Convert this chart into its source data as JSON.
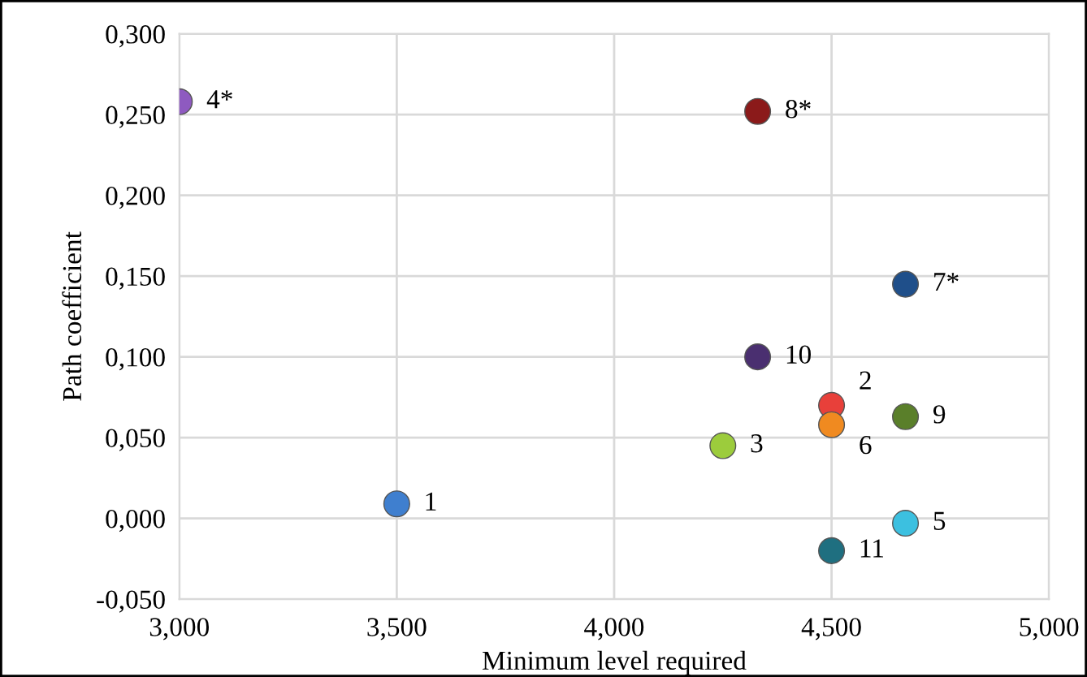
{
  "chart_data": {
    "type": "scatter",
    "xlabel": "Minimum level required",
    "ylabel": "Path coefficient",
    "xlim": [
      3.0,
      5.0
    ],
    "ylim": [
      -0.05,
      0.3
    ],
    "xticks": [
      {
        "value": 3.0,
        "label": "3,000"
      },
      {
        "value": 3.5,
        "label": "3,500"
      },
      {
        "value": 4.0,
        "label": "4,000"
      },
      {
        "value": 4.5,
        "label": "4,500"
      },
      {
        "value": 5.0,
        "label": "5,000"
      }
    ],
    "yticks": [
      {
        "value": -0.05,
        "label": "-0,050"
      },
      {
        "value": 0.0,
        "label": "0,000"
      },
      {
        "value": 0.05,
        "label": "0,050"
      },
      {
        "value": 0.1,
        "label": "0,100"
      },
      {
        "value": 0.15,
        "label": "0,150"
      },
      {
        "value": 0.2,
        "label": "0,200"
      },
      {
        "value": 0.25,
        "label": "0,250"
      },
      {
        "value": 0.3,
        "label": "0,300"
      }
    ],
    "grid": true,
    "legend": false,
    "marker": "circle",
    "series": [
      {
        "name": "1",
        "color": "#3f7fcf",
        "x": [
          3.5
        ],
        "values": [
          0.009
        ]
      },
      {
        "name": "2",
        "color": "#e8403a",
        "x": [
          4.5
        ],
        "values": [
          0.07
        ]
      },
      {
        "name": "3",
        "color": "#9ccc3c",
        "x": [
          4.25
        ],
        "values": [
          0.045
        ]
      },
      {
        "name": "4*",
        "color": "#8e5ac0",
        "x": [
          3.0
        ],
        "values": [
          0.258
        ]
      },
      {
        "name": "5",
        "color": "#3cc0e0",
        "x": [
          4.67
        ],
        "values": [
          -0.003
        ]
      },
      {
        "name": "6",
        "color": "#f08a20",
        "x": [
          4.5
        ],
        "values": [
          0.058
        ]
      },
      {
        "name": "7*",
        "color": "#1f4f8a",
        "x": [
          4.67
        ],
        "values": [
          0.145
        ]
      },
      {
        "name": "8*",
        "color": "#8b1a1a",
        "x": [
          4.33
        ],
        "values": [
          0.252
        ]
      },
      {
        "name": "9",
        "color": "#5a7f2a",
        "x": [
          4.67
        ],
        "values": [
          0.063
        ]
      },
      {
        "name": "10",
        "color": "#4a2f70",
        "x": [
          4.33
        ],
        "values": [
          0.1
        ]
      },
      {
        "name": "11",
        "color": "#1f6f80",
        "x": [
          4.5
        ],
        "values": [
          -0.02
        ]
      }
    ]
  }
}
